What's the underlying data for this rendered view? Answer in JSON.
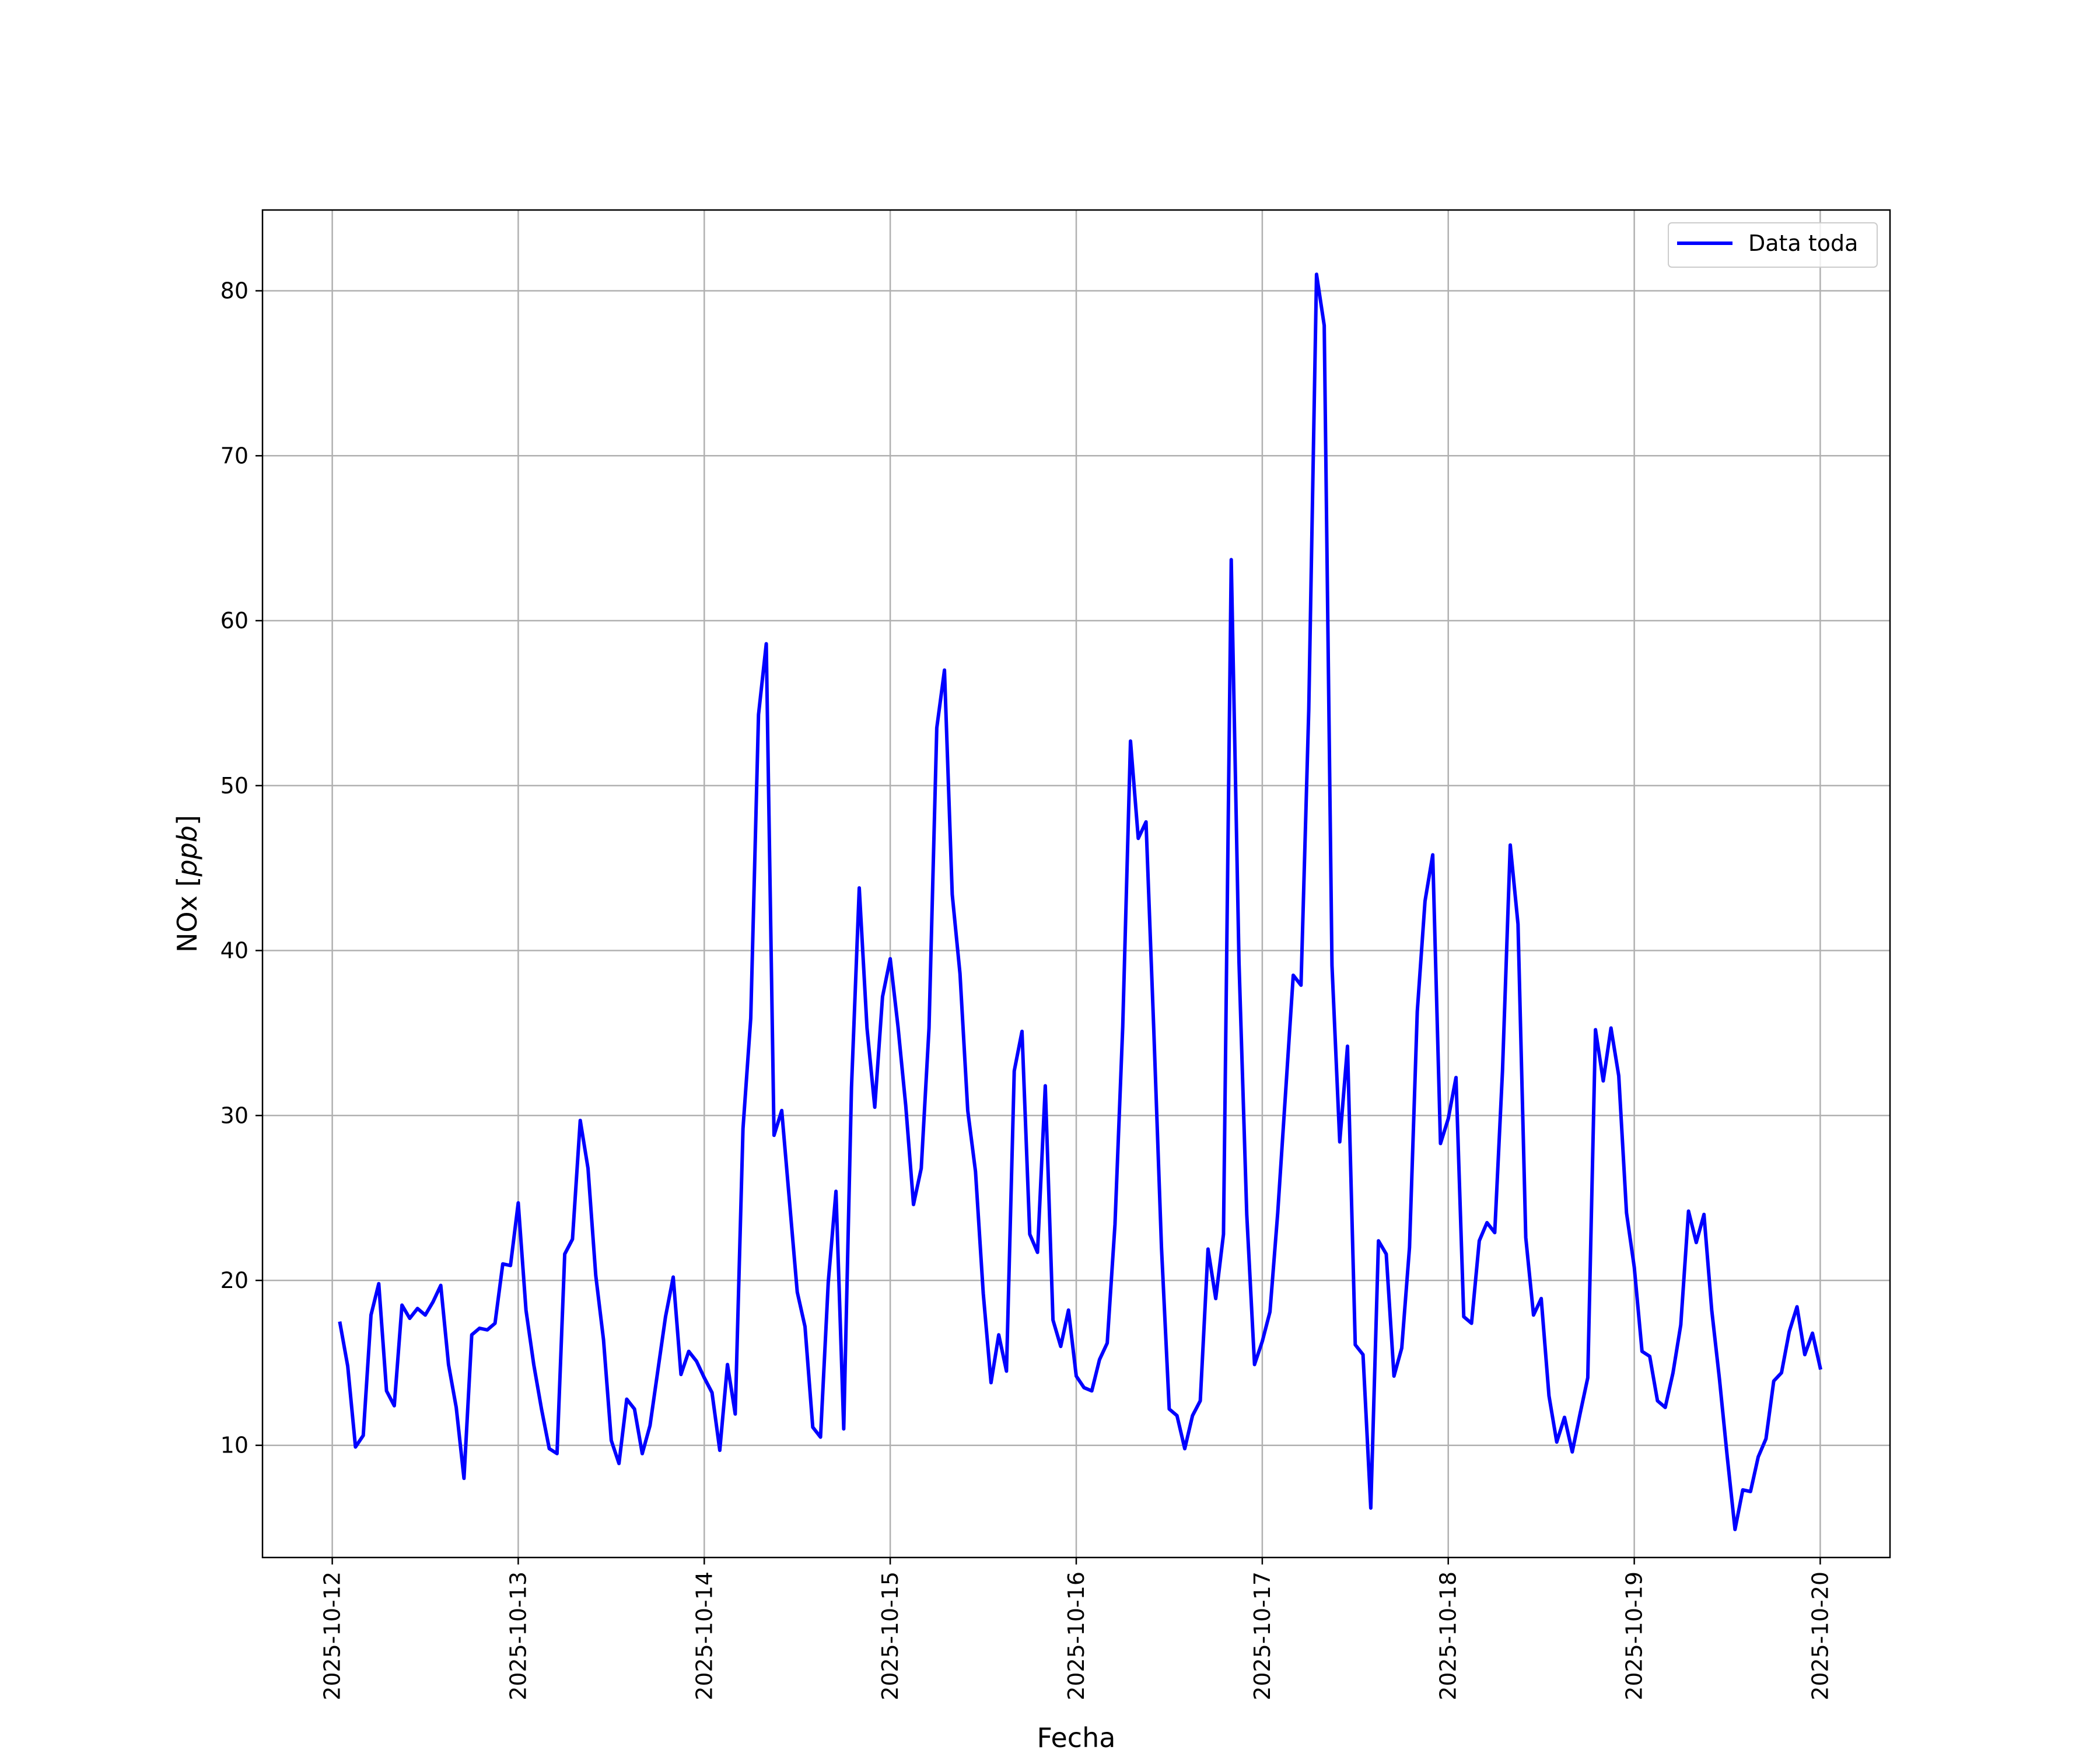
{
  "chart_data": {
    "type": "line",
    "xlabel": "Fecha",
    "ylabel": "NOx [ppb]",
    "ylabel_parts": {
      "main": "NOx [",
      "unit": "ppb",
      "close": "]"
    },
    "x_unit": "days",
    "xlim": [
      "2025-10-11T15:00",
      "2025-10-20T09:00"
    ],
    "ylim": [
      3.2,
      84.9
    ],
    "grid": true,
    "legend": "upper right",
    "x_ticks": [
      "2025-10-12",
      "2025-10-13",
      "2025-10-14",
      "2025-10-15",
      "2025-10-16",
      "2025-10-17",
      "2025-10-18",
      "2025-10-19",
      "2025-10-20"
    ],
    "y_ticks": [
      10,
      20,
      30,
      40,
      50,
      60,
      70,
      80
    ],
    "series": [
      {
        "name": "Data toda",
        "color": "#0000ff",
        "start": "2025-10-12T01:00",
        "interval_hours": 1,
        "values": [
          17.4,
          14.8,
          9.9,
          10.6,
          17.9,
          19.8,
          13.3,
          12.4,
          18.5,
          17.7,
          18.3,
          17.9,
          18.7,
          19.7,
          14.9,
          12.3,
          8.0,
          16.7,
          17.1,
          17.0,
          17.4,
          21.0,
          20.9,
          24.7,
          18.2,
          14.9,
          12.2,
          9.8,
          9.5,
          21.6,
          22.5,
          29.7,
          26.8,
          20.3,
          16.4,
          10.3,
          8.9,
          12.8,
          12.2,
          9.5,
          11.2,
          14.5,
          17.8,
          20.2,
          14.3,
          15.7,
          15.1,
          14.1,
          13.2,
          9.7,
          14.9,
          11.9,
          29.2,
          35.9,
          54.3,
          58.6,
          28.8,
          30.3,
          24.8,
          19.3,
          17.2,
          11.1,
          10.5,
          19.9,
          25.4,
          11.0,
          31.7,
          43.8,
          35.3,
          30.5,
          37.2,
          39.5,
          35.4,
          30.6,
          24.6,
          26.8,
          35.3,
          53.5,
          57.0,
          43.4,
          38.6,
          30.3,
          26.6,
          19.2,
          13.8,
          16.7,
          14.5,
          32.7,
          35.1,
          22.8,
          21.7,
          31.8,
          17.6,
          16.0,
          18.2,
          14.2,
          13.5,
          13.3,
          15.2,
          16.2,
          23.4,
          35.4,
          52.7,
          46.8,
          47.8,
          35.2,
          22.0,
          12.2,
          11.8,
          9.8,
          11.8,
          12.7,
          21.9,
          18.9,
          22.8,
          63.7,
          39.3,
          24.0,
          14.9,
          16.3,
          18.1,
          24.1,
          31.3,
          38.5,
          37.9,
          54.6,
          81.0,
          77.9,
          39.1,
          28.4,
          34.2,
          16.1,
          15.5,
          6.2,
          22.4,
          21.6,
          14.2,
          15.9,
          22.0,
          36.3,
          43.0,
          45.8,
          28.3,
          29.8,
          32.3,
          17.8,
          17.4,
          22.4,
          23.5,
          22.9,
          32.7,
          46.4,
          41.6,
          22.6,
          17.9,
          18.9,
          13.0,
          10.2,
          11.7,
          9.6,
          11.9,
          14.1,
          35.2,
          32.1,
          35.3,
          32.4,
          24.1,
          20.8,
          15.7,
          15.4,
          12.7,
          12.3,
          14.4,
          17.3,
          24.2,
          22.3,
          24.0,
          18.2,
          14.0,
          9.3,
          4.9,
          7.3,
          7.2,
          9.3,
          10.4,
          13.9,
          14.4,
          16.9,
          18.4,
          15.5,
          16.8,
          14.7
        ]
      }
    ]
  }
}
